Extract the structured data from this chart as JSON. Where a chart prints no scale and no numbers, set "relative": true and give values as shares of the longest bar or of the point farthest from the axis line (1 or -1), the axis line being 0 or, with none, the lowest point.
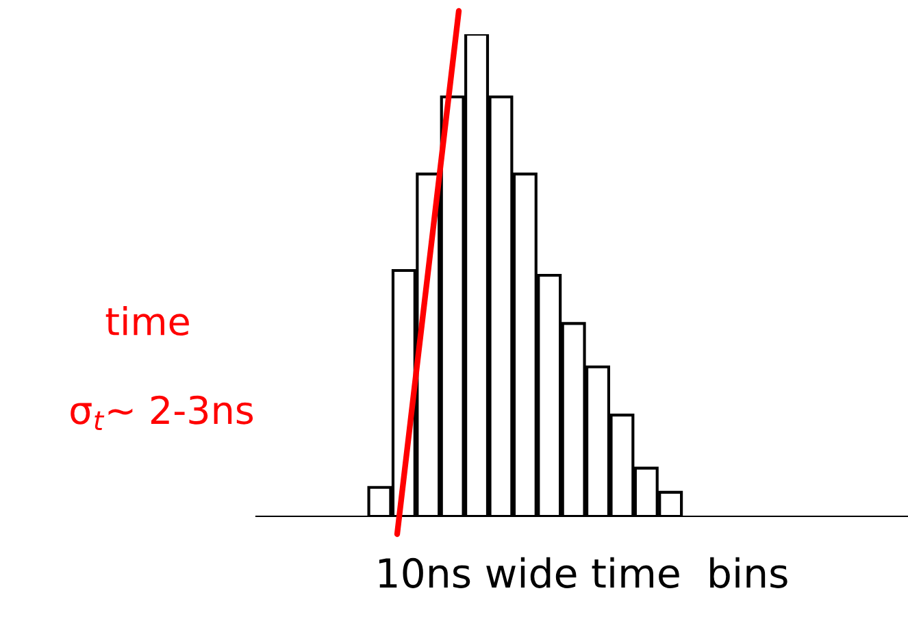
{
  "chart_data": {
    "type": "bar",
    "relative": true,
    "categories": [
      null,
      null,
      null,
      null,
      null,
      null,
      null,
      null,
      null,
      null,
      null,
      null,
      null
    ],
    "values": [
      0.06,
      0.51,
      0.71,
      0.87,
      1,
      0.87,
      0.71,
      0.5,
      0.4,
      0.31,
      0.21,
      0.1,
      0.05
    ],
    "color": "#ffffff",
    "xlabel": "10ns wide time  bins",
    "annotations": [
      "time",
      "σ$_{t}$∼ 2-3ns"
    ],
    "grid": false,
    "legend": false
  }
}
